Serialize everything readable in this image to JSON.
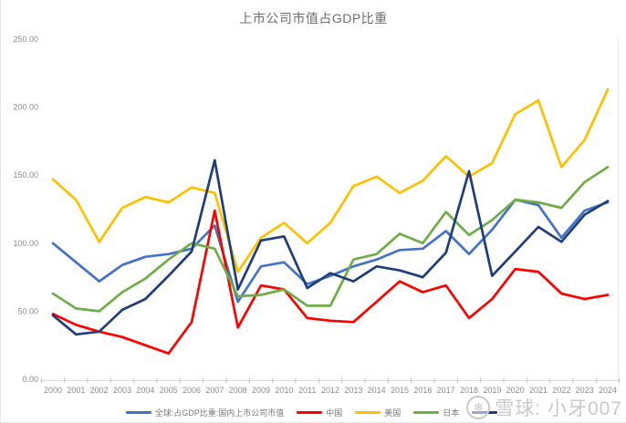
{
  "title": "上市公司市值占GDP比重",
  "watermark": {
    "brand": "雪球: 小牙007",
    "logo": "xueqiu-snowball-logo"
  },
  "colors": {
    "global": "#4472C4",
    "china": "#FF0000",
    "usa": "#FFC000",
    "japan": "#70AD47",
    "series5": "#1F3E78",
    "axis_text": "#8c8c8c",
    "tick_line": "#c3c3c3",
    "title_text": "#6e6e6e"
  },
  "legend": [
    {
      "label": "全球:占GDP比重:国内上市公司市值",
      "color": "#4472C4"
    },
    {
      "label": "中国",
      "color": "#FF0000"
    },
    {
      "label": "美国",
      "color": "#FFC000"
    },
    {
      "label": "日本",
      "color": "#70AD47"
    },
    {
      "label": "",
      "color": "#1F3E78",
      "label_hidden_by_watermark": true
    }
  ],
  "chart_data": {
    "type": "line",
    "title": "上市公司市值占GDP比重",
    "x": [
      2000,
      2001,
      2002,
      2003,
      2004,
      2005,
      2006,
      2007,
      2008,
      2009,
      2010,
      2011,
      2012,
      2013,
      2014,
      2015,
      2016,
      2017,
      2018,
      2019,
      2020,
      2021,
      2022,
      2023,
      2024
    ],
    "y_ticks": [
      "0.00",
      "50.00",
      "100.00",
      "150.00",
      "200.00",
      "250.00"
    ],
    "ylim": [
      0,
      250
    ],
    "grid": false,
    "legend_position": "bottom",
    "series": [
      {
        "name": "全球:占GDP比重:国内上市公司市值",
        "color": "#4472C4",
        "values": [
          100,
          86,
          72,
          84,
          90,
          92,
          96,
          113,
          57,
          83,
          86,
          70,
          76,
          83,
          88,
          95,
          96,
          109,
          92,
          110,
          132,
          128,
          104,
          124,
          130
        ]
      },
      {
        "name": "中国",
        "color": "#FF0000",
        "values": [
          48,
          40,
          35,
          31,
          25,
          19,
          42,
          124,
          38,
          69,
          66,
          45,
          43,
          42,
          57,
          72,
          64,
          69,
          45,
          59,
          81,
          79,
          63,
          59,
          62
        ]
      },
      {
        "name": "美国",
        "color": "#FFC000",
        "values": [
          147,
          132,
          101,
          126,
          134,
          130,
          141,
          137,
          79,
          104,
          115,
          100,
          115,
          142,
          149,
          137,
          146,
          164,
          149,
          159,
          195,
          205,
          156,
          176,
          213
        ]
      },
      {
        "name": "日本",
        "color": "#70AD47",
        "values": [
          63,
          52,
          50,
          64,
          74,
          88,
          100,
          96,
          61,
          62,
          66,
          54,
          54,
          88,
          92,
          107,
          100,
          123,
          106,
          117,
          132,
          130,
          126,
          145,
          156
        ]
      },
      {
        "name": "",
        "color": "#1F3E78",
        "values": [
          47,
          33,
          35,
          51,
          59,
          76,
          94,
          161,
          66,
          102,
          105,
          67,
          78,
          72,
          83,
          80,
          75,
          93,
          153,
          76,
          94,
          112,
          101,
          121,
          131
        ]
      }
    ]
  }
}
